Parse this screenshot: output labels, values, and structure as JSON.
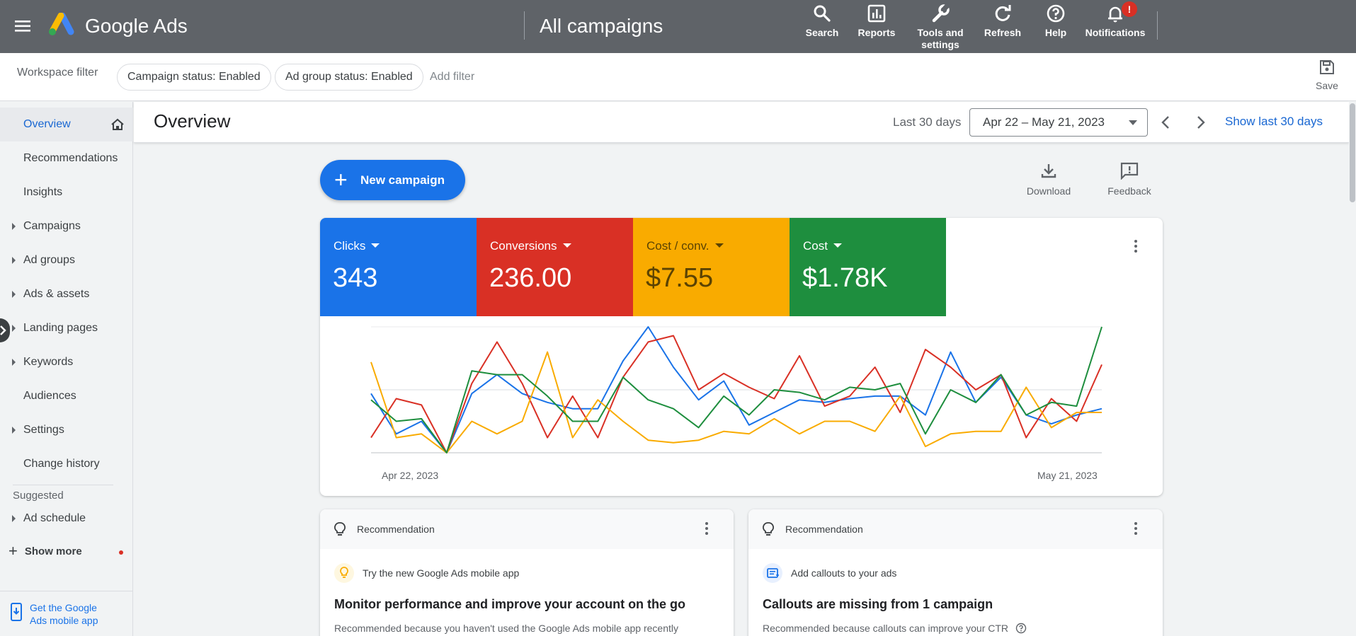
{
  "topbar": {
    "brand": "Google Ads",
    "title": "All campaigns",
    "tools": [
      {
        "icon": "search-icon",
        "label": "Search"
      },
      {
        "icon": "reports-icon",
        "label": "Reports"
      },
      {
        "icon": "wrench-icon",
        "label_line1": "Tools and",
        "label_line2": "settings"
      },
      {
        "icon": "refresh-icon",
        "label": "Refresh"
      },
      {
        "icon": "help-icon",
        "label": "Help"
      },
      {
        "icon": "bell-icon",
        "label": "Notifications",
        "badge": "!"
      }
    ]
  },
  "filters": {
    "workspace_label": "Workspace filter",
    "chips": [
      "Campaign status: Enabled",
      "Ad group status: Enabled"
    ],
    "add_filter": "Add filter",
    "save_label": "Save"
  },
  "sidebar": {
    "items": [
      {
        "label": "Overview",
        "active": true,
        "expandable": false
      },
      {
        "label": "Recommendations",
        "expandable": false
      },
      {
        "label": "Insights",
        "expandable": false
      },
      {
        "label": "Campaigns",
        "expandable": true
      },
      {
        "label": "Ad groups",
        "expandable": true
      },
      {
        "label": "Ads & assets",
        "expandable": true
      },
      {
        "label": "Landing pages",
        "expandable": true
      },
      {
        "label": "Keywords",
        "expandable": true
      },
      {
        "label": "Audiences",
        "expandable": false
      },
      {
        "label": "Settings",
        "expandable": true
      },
      {
        "label": "Change history",
        "expandable": false
      }
    ],
    "suggested_label": "Suggested",
    "suggested_items": [
      {
        "label": "Ad schedule",
        "expandable": true
      }
    ],
    "show_more": "Show more",
    "mobile_link_line1": "Get the Google",
    "mobile_link_line2": "Ads mobile app"
  },
  "overview": {
    "title": "Overview",
    "range_label": "Last 30 days",
    "date_range": "Apr 22 – May 21, 2023",
    "show_last": "Show last 30 days"
  },
  "main": {
    "new_campaign": "New campaign",
    "download": "Download",
    "feedback": "Feedback"
  },
  "metrics": [
    {
      "name": "Clicks",
      "value": "343",
      "color": "#1a73e8"
    },
    {
      "name": "Conversions",
      "value": "236.00",
      "color": "#d93025"
    },
    {
      "name": "Cost / conv.",
      "value": "$7.55",
      "color": "#f9ab00"
    },
    {
      "name": "Cost",
      "value": "$1.78K",
      "color": "#1e8e3e"
    }
  ],
  "chart_data": {
    "type": "line",
    "x_start_label": "Apr 22, 2023",
    "x_end_label": "May 21, 2023",
    "ylim": [
      0,
      100
    ],
    "grid": true,
    "series": [
      {
        "name": "Clicks",
        "color": "#1a73e8",
        "values": [
          47,
          15,
          25,
          0,
          47,
          62,
          47,
          40,
          35,
          35,
          73,
          100,
          68,
          42,
          57,
          22,
          32,
          42,
          40,
          43,
          45,
          45,
          30,
          80,
          40,
          60,
          30,
          23,
          30,
          35
        ]
      },
      {
        "name": "Conversions",
        "color": "#d93025",
        "values": [
          12,
          43,
          38,
          0,
          55,
          88,
          55,
          12,
          45,
          12,
          60,
          88,
          93,
          50,
          63,
          52,
          43,
          77,
          37,
          45,
          68,
          32,
          82,
          68,
          50,
          62,
          12,
          43,
          25,
          70
        ]
      },
      {
        "name": "Cost / conv.",
        "color": "#f9ab00",
        "values": [
          72,
          12,
          15,
          0,
          25,
          15,
          25,
          80,
          12,
          42,
          25,
          10,
          8,
          10,
          17,
          15,
          27,
          15,
          25,
          25,
          17,
          45,
          5,
          15,
          17,
          17,
          52,
          20,
          32,
          32
        ]
      },
      {
        "name": "Cost",
        "color": "#1e8e3e",
        "values": [
          42,
          25,
          27,
          0,
          65,
          62,
          62,
          45,
          25,
          25,
          60,
          42,
          35,
          20,
          45,
          30,
          50,
          48,
          42,
          52,
          50,
          55,
          15,
          50,
          40,
          62,
          30,
          40,
          37,
          100
        ]
      }
    ]
  },
  "recommendations": [
    {
      "header": "Recommendation",
      "icon": "bulb-icon",
      "sub": "Try the new Google Ads mobile app",
      "title": "Monitor performance and improve your account on the go",
      "why": "Recommended because you haven't used the Google Ads mobile app recently",
      "icon_bg": "#fef7e0",
      "icon_color": "#f9ab00"
    },
    {
      "header": "Recommendation",
      "icon": "callout-icon",
      "sub": "Add callouts to your ads",
      "title": "Callouts are missing from 1 campaign",
      "why": "Recommended because callouts can improve your CTR",
      "icon_bg": "#e8f0fe",
      "icon_color": "#1a73e8"
    }
  ]
}
